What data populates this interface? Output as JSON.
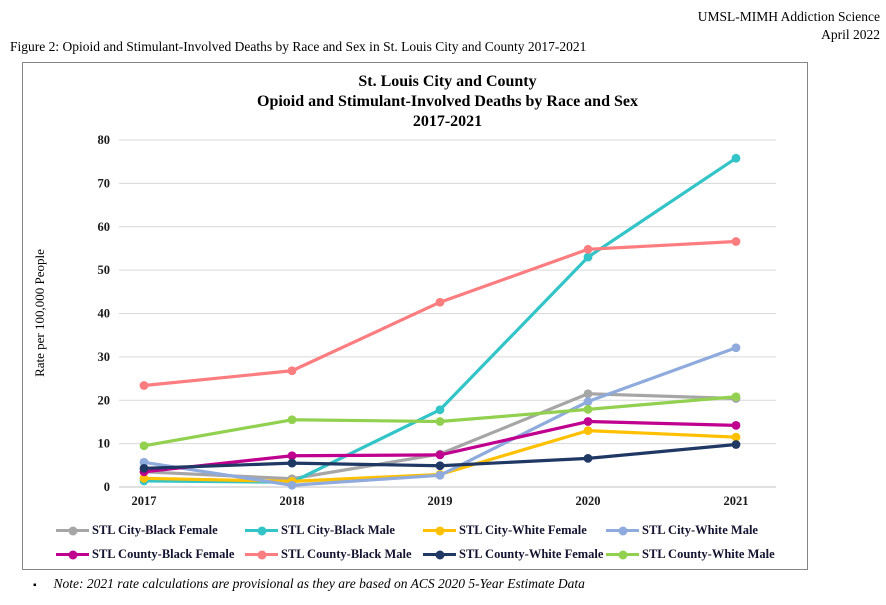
{
  "page": {
    "header_right_line1": "UMSL-MIMH Addiction Science",
    "header_right_line2": "April 2022",
    "figure_caption": "Figure 2: Opioid and Stimulant-Involved Deaths by Race and Sex in St. Louis City and County 2017-2021",
    "footnote_bullet": "▪",
    "footnote": "Note: 2021 rate calculations are provisional as they are based on ACS 2020 5-Year Estimate Data"
  },
  "chart_data": {
    "type": "line",
    "title_lines": [
      "St. Louis City and County",
      "Opioid and Stimulant-Involved Deaths by Race and Sex",
      "2017-2021"
    ],
    "xlabel": "",
    "ylabel": "Rate per 100,000 People",
    "x": [
      "2017",
      "2018",
      "2019",
      "2020",
      "2021"
    ],
    "ylim": [
      0,
      80
    ],
    "ytick_step": 10,
    "grid": "horizontal",
    "legend_position": "bottom",
    "marker": "circle",
    "colors": {
      "grid": "#d9d9d9",
      "zero_axis": "#c2c2c2",
      "tick_text": "#1a1a1a"
    },
    "series": [
      {
        "name": "STL City-Black Female",
        "color": "#a6a6a6",
        "values": [
          3.5,
          1.9,
          7.6,
          21.5,
          20.4
        ]
      },
      {
        "name": "STL City-Black Male",
        "color": "#33c4c8",
        "values": [
          1.4,
          1.1,
          17.8,
          53.0,
          75.8
        ]
      },
      {
        "name": "STL City-White Female",
        "color": "#ffc000",
        "values": [
          2.0,
          1.3,
          2.9,
          13.0,
          11.5
        ]
      },
      {
        "name": "STL City-White Male",
        "color": "#8faadc",
        "values": [
          5.7,
          0.4,
          2.7,
          19.7,
          32.1
        ]
      },
      {
        "name": "STL County-Black Female",
        "color": "#c0008f",
        "values": [
          3.5,
          7.2,
          7.4,
          15.1,
          14.2
        ]
      },
      {
        "name": "STL County-Black Male",
        "color": "#fb7d80",
        "values": [
          23.4,
          26.8,
          42.6,
          54.8,
          56.6
        ]
      },
      {
        "name": "STL County-White Female",
        "color": "#1f3864",
        "values": [
          4.3,
          5.5,
          4.9,
          6.6,
          9.8
        ]
      },
      {
        "name": "STL County-White Male",
        "color": "#92d050",
        "values": [
          9.5,
          15.5,
          15.1,
          17.9,
          20.8
        ]
      }
    ]
  }
}
